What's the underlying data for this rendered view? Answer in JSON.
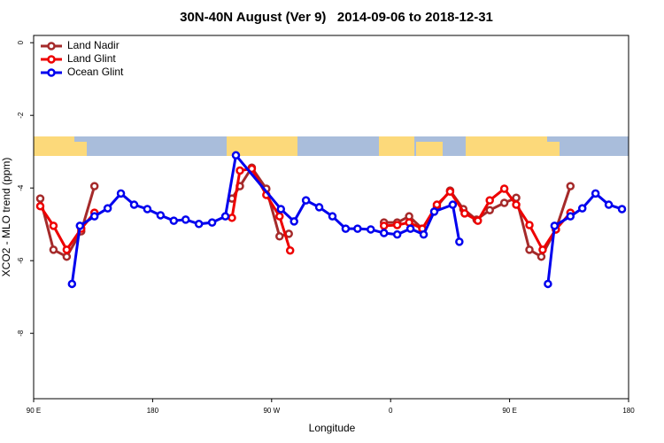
{
  "chart_data": {
    "type": "line",
    "title": "30N-40N August (Ver 9)   2014-09-06 to 2018-12-31",
    "xlabel": "Longitude",
    "ylabel": "XCO2 - MLO trend (ppm)",
    "xlim": [
      90,
      540
    ],
    "ylim": [
      -9.8,
      0.2
    ],
    "xticks": [
      {
        "value": 90,
        "label": "90 E"
      },
      {
        "value": 180,
        "label": "180"
      },
      {
        "value": 270,
        "label": "90 W"
      },
      {
        "value": 360,
        "label": "0"
      },
      {
        "value": 450,
        "label": "90 E"
      },
      {
        "value": 540,
        "label": "180"
      }
    ],
    "yticks": [
      0,
      -2,
      -4,
      -6,
      -8
    ],
    "legend": "top-left",
    "series": [
      {
        "name": "Land Nadir",
        "color": "#a52a2a",
        "x": [
          95,
          105,
          115,
          126,
          136,
          null,
          240,
          246,
          255,
          266,
          276,
          283,
          null,
          355,
          365,
          374,
          384,
          395,
          405,
          415,
          425,
          435,
          446,
          455,
          465,
          474,
          485,
          496
        ],
        "values": [
          -4.29,
          -5.7,
          -5.89,
          -5.19,
          -3.95,
          null,
          -4.29,
          -3.95,
          -3.44,
          -4.02,
          -5.33,
          -5.26,
          null,
          -4.95,
          -4.95,
          -4.78,
          -5.12,
          -4.51,
          -4.07,
          -4.58,
          -4.87,
          -4.61,
          -4.41,
          -4.27,
          -5.7,
          -5.89,
          -5.14,
          -3.95
        ]
      },
      {
        "name": "Land Glint",
        "color": "#ee0000",
        "x": [
          95,
          105,
          115,
          126,
          136,
          null,
          240,
          246,
          255,
          266,
          276,
          284,
          null,
          355,
          365,
          374,
          384,
          395,
          405,
          416,
          426,
          435,
          446,
          455,
          465,
          475,
          485,
          496
        ],
        "values": [
          -4.5,
          -5.04,
          -5.7,
          -5.12,
          -4.68,
          null,
          -4.82,
          -3.52,
          -3.47,
          -4.19,
          -4.78,
          -5.72,
          null,
          -5.04,
          -5.02,
          -4.95,
          -5.12,
          -4.46,
          -4.1,
          -4.7,
          -4.9,
          -4.34,
          -4.02,
          -4.46,
          -5.02,
          -5.7,
          -5.14,
          -4.68
        ]
      },
      {
        "name": "Ocean Glint",
        "color": "#0000ee",
        "x": [
          119,
          125,
          136,
          146,
          156,
          166,
          176,
          186,
          196,
          205,
          215,
          225,
          235,
          243,
          277,
          287,
          296,
          306,
          316,
          326,
          335,
          345,
          355,
          365,
          375,
          385,
          393,
          407,
          412,
          null,
          479,
          484,
          496,
          505,
          515,
          525,
          535
        ],
        "values": [
          -6.64,
          -5.04,
          -4.78,
          -4.56,
          -4.15,
          -4.46,
          -4.58,
          -4.75,
          -4.9,
          -4.87,
          -4.99,
          -4.95,
          -4.78,
          -3.1,
          -4.58,
          -4.92,
          -4.34,
          -4.53,
          -4.78,
          -5.12,
          -5.12,
          -5.14,
          -5.24,
          -5.28,
          -5.12,
          -5.28,
          -4.65,
          -4.46,
          -5.48,
          null,
          -6.64,
          -5.04,
          -4.78,
          -4.56,
          -4.15,
          -4.46,
          -4.58
        ]
      }
    ]
  }
}
